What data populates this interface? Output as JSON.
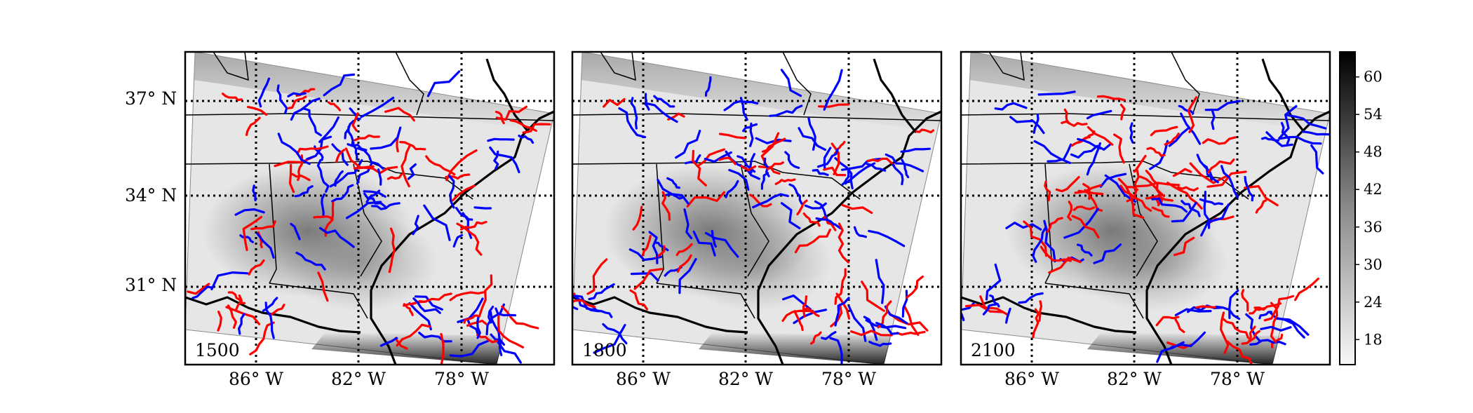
{
  "figure": {
    "panels": [
      {
        "time_label": "1500"
      },
      {
        "time_label": "1800"
      },
      {
        "time_label": "2100"
      }
    ],
    "lat_labels": [
      "37° N",
      "34° N",
      "31° N"
    ],
    "lon_labels": [
      "86° W",
      "82° W",
      "78° W"
    ],
    "colorbar": {
      "ticks": [
        "60",
        "54",
        "48",
        "42",
        "36",
        "30",
        "24",
        "18"
      ],
      "range": [
        14,
        64
      ],
      "colormap": "gray_r"
    },
    "colors": {
      "red_fronts": "#ff0000",
      "blue_fronts": "#0000ff",
      "grid": "#000000"
    }
  }
}
